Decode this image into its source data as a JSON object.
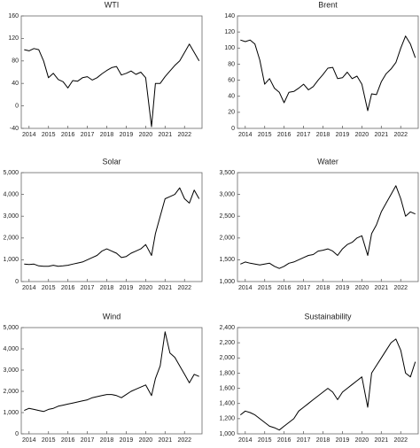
{
  "chart_data": [
    {
      "type": "line",
      "title": "WTI",
      "color": "#000000",
      "x": [
        2013.75,
        2014,
        2014.25,
        2014.5,
        2014.75,
        2015,
        2015.25,
        2015.5,
        2015.75,
        2016,
        2016.25,
        2016.5,
        2016.75,
        2017,
        2017.25,
        2017.5,
        2017.75,
        2018,
        2018.25,
        2018.5,
        2018.75,
        2019,
        2019.25,
        2019.5,
        2019.75,
        2020,
        2020.3,
        2020.5,
        2020.75,
        2021,
        2021.25,
        2021.5,
        2021.75,
        2022,
        2022.25,
        2022.5,
        2022.75
      ],
      "values": [
        100,
        98,
        102,
        100,
        80,
        50,
        58,
        47,
        43,
        32,
        45,
        44,
        50,
        52,
        46,
        50,
        57,
        63,
        68,
        70,
        55,
        58,
        62,
        56,
        60,
        50,
        -37,
        40,
        40,
        52,
        62,
        72,
        80,
        95,
        110,
        95,
        80
      ],
      "xlim": [
        2013.6,
        2022.9
      ],
      "xticks": [
        2014,
        2015,
        2016,
        2017,
        2018,
        2019,
        2020,
        2021,
        2022
      ],
      "ylim": [
        -40,
        160
      ],
      "yticks": [
        -40,
        0,
        40,
        80,
        120,
        160
      ]
    },
    {
      "type": "line",
      "title": "Brent",
      "color": "#000000",
      "x": [
        2013.75,
        2014,
        2014.25,
        2014.5,
        2014.75,
        2015,
        2015.25,
        2015.5,
        2015.75,
        2016,
        2016.25,
        2016.5,
        2016.75,
        2017,
        2017.25,
        2017.5,
        2017.75,
        2018,
        2018.25,
        2018.5,
        2018.75,
        2019,
        2019.25,
        2019.5,
        2019.75,
        2020,
        2020.3,
        2020.5,
        2020.75,
        2021,
        2021.25,
        2021.5,
        2021.75,
        2022,
        2022.25,
        2022.5,
        2022.75
      ],
      "values": [
        110,
        108,
        110,
        105,
        85,
        55,
        62,
        50,
        45,
        32,
        45,
        46,
        50,
        55,
        48,
        52,
        60,
        67,
        75,
        76,
        62,
        63,
        70,
        62,
        65,
        55,
        22,
        43,
        42,
        58,
        68,
        74,
        82,
        100,
        115,
        105,
        88
      ],
      "xlim": [
        2013.6,
        2022.9
      ],
      "xticks": [
        2014,
        2015,
        2016,
        2017,
        2018,
        2019,
        2020,
        2021,
        2022
      ],
      "ylim": [
        0,
        140
      ],
      "yticks": [
        0,
        20,
        40,
        60,
        80,
        100,
        120,
        140
      ]
    },
    {
      "type": "line",
      "title": "Solar",
      "color": "#000000",
      "x": [
        2013.75,
        2014,
        2014.25,
        2014.5,
        2014.75,
        2015,
        2015.25,
        2015.5,
        2015.75,
        2016,
        2016.25,
        2016.5,
        2016.75,
        2017,
        2017.25,
        2017.5,
        2017.75,
        2018,
        2018.25,
        2018.5,
        2018.75,
        2019,
        2019.25,
        2019.5,
        2019.75,
        2020,
        2020.3,
        2020.5,
        2020.75,
        2021,
        2021.25,
        2021.5,
        2021.75,
        2022,
        2022.25,
        2022.5,
        2022.75
      ],
      "values": [
        800,
        780,
        800,
        720,
        700,
        700,
        750,
        700,
        720,
        750,
        800,
        850,
        900,
        1000,
        1100,
        1200,
        1400,
        1500,
        1400,
        1300,
        1100,
        1150,
        1300,
        1400,
        1500,
        1700,
        1200,
        2200,
        3000,
        3800,
        3900,
        4000,
        4300,
        3800,
        3600,
        4200,
        3800
      ],
      "xlim": [
        2013.6,
        2022.9
      ],
      "xticks": [
        2014,
        2015,
        2016,
        2017,
        2018,
        2019,
        2020,
        2021,
        2022
      ],
      "ylim": [
        0,
        5000
      ],
      "yticks": [
        0,
        {
          "value": 1000,
          "label": "1,000"
        },
        {
          "value": 2000,
          "label": "2,000"
        },
        {
          "value": 3000,
          "label": "3,000"
        },
        {
          "value": 4000,
          "label": "4,000"
        },
        {
          "value": 5000,
          "label": "5,000"
        }
      ]
    },
    {
      "type": "line",
      "title": "Water",
      "color": "#000000",
      "x": [
        2013.75,
        2014,
        2014.25,
        2014.5,
        2014.75,
        2015,
        2015.25,
        2015.5,
        2015.75,
        2016,
        2016.25,
        2016.5,
        2016.75,
        2017,
        2017.25,
        2017.5,
        2017.75,
        2018,
        2018.25,
        2018.5,
        2018.75,
        2019,
        2019.25,
        2019.5,
        2019.75,
        2020,
        2020.3,
        2020.5,
        2020.75,
        2021,
        2021.25,
        2021.5,
        2021.75,
        2022,
        2022.25,
        2022.5,
        2022.75
      ],
      "values": [
        1400,
        1450,
        1420,
        1400,
        1380,
        1400,
        1420,
        1350,
        1300,
        1350,
        1420,
        1450,
        1500,
        1550,
        1600,
        1620,
        1700,
        1720,
        1750,
        1700,
        1600,
        1750,
        1850,
        1900,
        2000,
        2050,
        1600,
        2100,
        2300,
        2600,
        2800,
        3000,
        3200,
        2900,
        2500,
        2600,
        2550
      ],
      "xlim": [
        2013.6,
        2022.9
      ],
      "xticks": [
        2014,
        2015,
        2016,
        2017,
        2018,
        2019,
        2020,
        2021,
        2022
      ],
      "ylim": [
        1000,
        3500
      ],
      "yticks": [
        {
          "value": 1000,
          "label": "1,000"
        },
        {
          "value": 1500,
          "label": "1,500"
        },
        {
          "value": 2000,
          "label": "2,000"
        },
        {
          "value": 2500,
          "label": "2,500"
        },
        {
          "value": 3000,
          "label": "3,000"
        },
        {
          "value": 3500,
          "label": "3,500"
        }
      ]
    },
    {
      "type": "line",
      "title": "Wind",
      "color": "#000000",
      "x": [
        2013.75,
        2014,
        2014.25,
        2014.5,
        2014.75,
        2015,
        2015.25,
        2015.5,
        2015.75,
        2016,
        2016.25,
        2016.5,
        2016.75,
        2017,
        2017.25,
        2017.5,
        2017.75,
        2018,
        2018.25,
        2018.5,
        2018.75,
        2019,
        2019.25,
        2019.5,
        2019.75,
        2020,
        2020.3,
        2020.5,
        2020.75,
        2021,
        2021.25,
        2021.5,
        2021.75,
        2022,
        2022.25,
        2022.5,
        2022.75
      ],
      "values": [
        1100,
        1200,
        1150,
        1100,
        1050,
        1150,
        1200,
        1300,
        1350,
        1400,
        1450,
        1500,
        1550,
        1600,
        1700,
        1750,
        1800,
        1850,
        1850,
        1800,
        1700,
        1850,
        2000,
        2100,
        2200,
        2300,
        1800,
        2600,
        3200,
        4800,
        3800,
        3600,
        3200,
        2800,
        2400,
        2800,
        2700
      ],
      "xlim": [
        2013.6,
        2022.9
      ],
      "xticks": [
        2014,
        2015,
        2016,
        2017,
        2018,
        2019,
        2020,
        2021,
        2022
      ],
      "ylim": [
        0,
        5000
      ],
      "yticks": [
        0,
        {
          "value": 1000,
          "label": "1,000"
        },
        {
          "value": 2000,
          "label": "2,000"
        },
        {
          "value": 3000,
          "label": "3,000"
        },
        {
          "value": 4000,
          "label": "4,000"
        },
        {
          "value": 5000,
          "label": "5,000"
        }
      ]
    },
    {
      "type": "line",
      "title": "Sustainability",
      "color": "#000000",
      "x": [
        2013.75,
        2014,
        2014.25,
        2014.5,
        2014.75,
        2015,
        2015.25,
        2015.5,
        2015.75,
        2016,
        2016.25,
        2016.5,
        2016.75,
        2017,
        2017.25,
        2017.5,
        2017.75,
        2018,
        2018.25,
        2018.5,
        2018.75,
        2019,
        2019.25,
        2019.5,
        2019.75,
        2020,
        2020.3,
        2020.5,
        2020.75,
        2021,
        2021.25,
        2021.5,
        2021.75,
        2022,
        2022.25,
        2022.5,
        2022.75
      ],
      "values": [
        1250,
        1300,
        1280,
        1250,
        1200,
        1150,
        1100,
        1080,
        1050,
        1100,
        1150,
        1200,
        1300,
        1350,
        1400,
        1450,
        1500,
        1550,
        1600,
        1550,
        1450,
        1550,
        1600,
        1650,
        1700,
        1750,
        1350,
        1800,
        1900,
        2000,
        2100,
        2200,
        2250,
        2100,
        1800,
        1750,
        1950
      ],
      "xlim": [
        2013.6,
        2022.9
      ],
      "xticks": [
        2014,
        2015,
        2016,
        2017,
        2018,
        2019,
        2020,
        2021,
        2022
      ],
      "ylim": [
        1000,
        2400
      ],
      "yticks": [
        {
          "value": 1000,
          "label": "1,000"
        },
        {
          "value": 1200,
          "label": "1,200"
        },
        {
          "value": 1400,
          "label": "1,400"
        },
        {
          "value": 1600,
          "label": "1,600"
        },
        {
          "value": 1800,
          "label": "1,800"
        },
        {
          "value": 2000,
          "label": "2,000"
        },
        {
          "value": 2200,
          "label": "2,200"
        },
        {
          "value": 2400,
          "label": "2,400"
        }
      ]
    }
  ]
}
